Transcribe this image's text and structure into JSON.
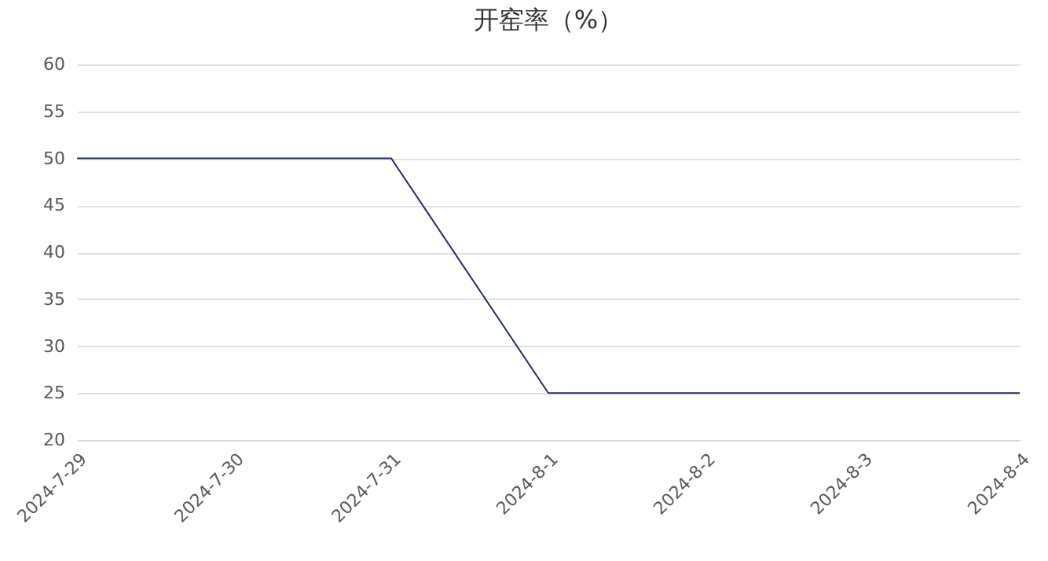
{
  "chart_data": {
    "type": "line",
    "title": "开窑率（%）",
    "categories": [
      "2024-7-29",
      "2024-7-30",
      "2024-7-31",
      "2024-8-1",
      "2024-8-2",
      "2024-8-3",
      "2024-8-4"
    ],
    "series": [
      {
        "color": "#1f2a6b",
        "values": [
          50,
          50,
          50,
          25,
          25,
          25,
          25
        ]
      }
    ],
    "ylim": [
      20,
      60
    ],
    "yticks": [
      20,
      25,
      30,
      35,
      40,
      45,
      50,
      55,
      60
    ],
    "grid": "y",
    "legend": false,
    "marker": "none",
    "line_style": "solid"
  }
}
